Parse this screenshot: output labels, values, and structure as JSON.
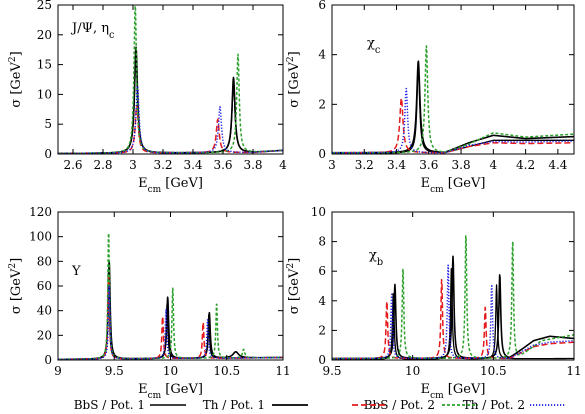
{
  "chart_data": [
    {
      "type": "line",
      "annotation": "J/Ψ,  ηc",
      "xlabel": "Ecm [GeV]",
      "ylabel": "σ [GeV2]",
      "xlim": [
        2.5,
        4.0
      ],
      "ylim": [
        0,
        25
      ],
      "xticks": [
        2.6,
        2.8,
        3.0,
        3.2,
        3.4,
        3.6,
        3.8,
        4.0
      ],
      "xtick_labels": [
        "2.6",
        "2.8",
        "3",
        "3.2",
        "3.4",
        "3.6",
        "3.8",
        "4"
      ],
      "yticks": [
        0,
        5,
        10,
        15,
        20,
        25
      ],
      "grid": false,
      "baseline": [
        [
          2.5,
          0.08
        ],
        [
          3.8,
          0.25
        ],
        [
          4.0,
          0.6
        ]
      ],
      "series": [
        {
          "style": "bbs1",
          "peaks": [
            {
              "x": 3.02,
              "h": 17.0,
              "w": 0.012
            },
            {
              "x": 3.67,
              "h": 11.8,
              "w": 0.012
            }
          ]
        },
        {
          "style": "th1",
          "peaks": [
            {
              "x": 3.02,
              "h": 17.8,
              "w": 0.012
            },
            {
              "x": 3.67,
              "h": 12.6,
              "w": 0.012
            }
          ]
        },
        {
          "style": "bbs2",
          "peaks": [
            {
              "x": 3.025,
              "h": 8.0,
              "w": 0.012
            },
            {
              "x": 3.565,
              "h": 5.6,
              "w": 0.012
            }
          ]
        },
        {
          "style": "th2",
          "peaks": [
            {
              "x": 3.015,
              "h": 24.8,
              "w": 0.01
            },
            {
              "x": 3.7,
              "h": 16.5,
              "w": 0.01
            }
          ]
        },
        {
          "style": "dot",
          "peaks": [
            {
              "x": 3.03,
              "h": 11.3,
              "w": 0.012
            },
            {
              "x": 3.58,
              "h": 7.7,
              "w": 0.012
            }
          ]
        }
      ]
    },
    {
      "type": "line",
      "annotation": "χc",
      "xlabel": "Ecm [GeV]",
      "ylabel": "σ [GeV2]",
      "xlim": [
        3.0,
        4.5
      ],
      "ylim": [
        0,
        6
      ],
      "xticks": [
        3.0,
        3.2,
        3.4,
        3.6,
        3.8,
        4.0,
        4.2,
        4.4
      ],
      "xtick_labels": [
        "3",
        "3.2",
        "3.4",
        "3.6",
        "3.8",
        "4",
        "4.2",
        "4.4"
      ],
      "yticks": [
        0,
        2,
        4,
        6
      ],
      "grid": false,
      "baseline": [
        [
          3.0,
          0.02
        ],
        [
          3.7,
          0.05
        ],
        [
          3.85,
          0.3
        ],
        [
          4.0,
          0.55
        ],
        [
          4.5,
          0.55
        ]
      ],
      "series": [
        {
          "style": "bbs1",
          "peaks": [
            {
              "x": 3.535,
              "h": 3.5,
              "w": 0.01
            }
          ]
        },
        {
          "style": "th1",
          "peaks": [
            {
              "x": 3.535,
              "h": 3.7,
              "w": 0.012
            }
          ],
          "bump": [
            [
              3.7,
              0.05
            ],
            [
              3.85,
              0.45
            ],
            [
              4.0,
              0.75
            ],
            [
              4.2,
              0.62
            ],
            [
              4.5,
              0.7
            ]
          ]
        },
        {
          "style": "bbs2",
          "peaks": [
            {
              "x": 3.43,
              "h": 2.2,
              "w": 0.012
            }
          ],
          "bump": [
            [
              3.7,
              0.05
            ],
            [
              3.85,
              0.3
            ],
            [
              4.0,
              0.45
            ],
            [
              4.2,
              0.42
            ],
            [
              4.5,
              0.45
            ]
          ]
        },
        {
          "style": "th2",
          "peaks": [
            {
              "x": 3.585,
              "h": 4.3,
              "w": 0.01
            }
          ],
          "bump": [
            [
              3.7,
              0.05
            ],
            [
              3.85,
              0.4
            ],
            [
              4.0,
              0.85
            ],
            [
              4.2,
              0.68
            ],
            [
              4.5,
              0.8
            ]
          ]
        },
        {
          "style": "dot",
          "peaks": [
            {
              "x": 3.46,
              "h": 2.6,
              "w": 0.01
            }
          ],
          "bump": [
            [
              3.7,
              0.05
            ],
            [
              3.85,
              0.35
            ],
            [
              4.0,
              0.5
            ],
            [
              4.2,
              0.48
            ],
            [
              4.5,
              0.52
            ]
          ]
        }
      ]
    },
    {
      "type": "line",
      "annotation": "Υ",
      "xlabel": "Ecm [GeV]",
      "ylabel": "σ [GeV2]",
      "xlim": [
        9.0,
        11.0
      ],
      "ylim": [
        0,
        120
      ],
      "xticks": [
        9.0,
        9.5,
        10.0,
        10.5,
        11.0
      ],
      "xtick_labels": [
        "9",
        "9.5",
        "10",
        "10.5",
        "11"
      ],
      "yticks": [
        0,
        20,
        40,
        60,
        80,
        100,
        120
      ],
      "grid": false,
      "baseline": [
        [
          9.0,
          0.5
        ],
        [
          10.5,
          1.5
        ],
        [
          11.0,
          2.0
        ]
      ],
      "series": [
        {
          "style": "bbs1",
          "peaks": [
            {
              "x": 9.45,
              "h": 75,
              "w": 0.008
            },
            {
              "x": 9.97,
              "h": 45,
              "w": 0.008
            },
            {
              "x": 10.34,
              "h": 35,
              "w": 0.008
            }
          ]
        },
        {
          "style": "th1",
          "peaks": [
            {
              "x": 9.455,
              "h": 80,
              "w": 0.01
            },
            {
              "x": 9.975,
              "h": 50,
              "w": 0.01
            },
            {
              "x": 10.345,
              "h": 37,
              "w": 0.01
            },
            {
              "x": 10.58,
              "h": 5,
              "w": 0.03
            }
          ]
        },
        {
          "style": "bbs2",
          "peaks": [
            {
              "x": 9.45,
              "h": 70,
              "w": 0.008
            },
            {
              "x": 9.93,
              "h": 35,
              "w": 0.008
            },
            {
              "x": 10.29,
              "h": 30,
              "w": 0.008
            }
          ]
        },
        {
          "style": "th2",
          "peaks": [
            {
              "x": 9.45,
              "h": 105,
              "w": 0.008
            },
            {
              "x": 10.02,
              "h": 57,
              "w": 0.008
            },
            {
              "x": 10.41,
              "h": 45,
              "w": 0.008
            },
            {
              "x": 10.65,
              "h": 7,
              "w": 0.012
            }
          ]
        },
        {
          "style": "dot",
          "peaks": [
            {
              "x": 9.455,
              "h": 60,
              "w": 0.008
            },
            {
              "x": 9.96,
              "h": 40,
              "w": 0.008
            },
            {
              "x": 10.33,
              "h": 32,
              "w": 0.008
            }
          ]
        }
      ]
    },
    {
      "type": "line",
      "annotation": "χb",
      "xlabel": "Ecm [GeV]",
      "ylabel": "σ [GeV2]",
      "xlim": [
        9.5,
        11.0
      ],
      "ylim": [
        0,
        10
      ],
      "xticks": [
        9.5,
        10.0,
        10.5,
        11.0
      ],
      "xtick_labels": [
        "9.5",
        "10",
        "10.5",
        "11"
      ],
      "yticks": [
        0,
        2,
        4,
        6,
        8,
        10
      ],
      "grid": false,
      "baseline": [
        [
          9.5,
          0.02
        ],
        [
          11.0,
          0.1
        ]
      ],
      "series": [
        {
          "style": "bbs1",
          "peaks": [
            {
              "x": 9.88,
              "h": 4.5,
              "w": 0.006
            },
            {
              "x": 10.24,
              "h": 6.2,
              "w": 0.006
            },
            {
              "x": 10.52,
              "h": 5.0,
              "w": 0.006
            }
          ]
        },
        {
          "style": "th1",
          "peaks": [
            {
              "x": 9.89,
              "h": 5.0,
              "w": 0.007
            },
            {
              "x": 10.25,
              "h": 6.9,
              "w": 0.007
            },
            {
              "x": 10.54,
              "h": 5.7,
              "w": 0.007
            }
          ],
          "bump": [
            [
              10.6,
              0.1
            ],
            [
              10.75,
              1.3
            ],
            [
              10.85,
              1.6
            ],
            [
              11.0,
              1.45
            ]
          ]
        },
        {
          "style": "bbs2",
          "peaks": [
            {
              "x": 9.84,
              "h": 3.9,
              "w": 0.006
            },
            {
              "x": 10.18,
              "h": 5.4,
              "w": 0.006
            },
            {
              "x": 10.45,
              "h": 3.5,
              "w": 0.006
            }
          ],
          "bump": [
            [
              10.6,
              0.1
            ],
            [
              10.75,
              0.9
            ],
            [
              10.85,
              1.1
            ],
            [
              11.0,
              1.2
            ]
          ]
        },
        {
          "style": "th2",
          "peaks": [
            {
              "x": 9.94,
              "h": 6.1,
              "w": 0.006
            },
            {
              "x": 10.33,
              "h": 8.4,
              "w": 0.006
            },
            {
              "x": 10.62,
              "h": 8.0,
              "w": 0.006
            }
          ],
          "bump": [
            [
              10.65,
              0.1
            ],
            [
              10.8,
              1.3
            ],
            [
              10.9,
              1.5
            ],
            [
              11.0,
              1.7
            ]
          ]
        },
        {
          "style": "dot",
          "peaks": [
            {
              "x": 9.87,
              "h": 4.4,
              "w": 0.006
            },
            {
              "x": 10.22,
              "h": 6.3,
              "w": 0.006
            },
            {
              "x": 10.49,
              "h": 5.0,
              "w": 0.006
            }
          ],
          "bump": [
            [
              10.6,
              0.1
            ],
            [
              10.75,
              1.0
            ],
            [
              10.85,
              1.2
            ],
            [
              11.0,
              1.3
            ]
          ]
        }
      ]
    }
  ],
  "legend": {
    "placement": "bottom",
    "entries": [
      {
        "label": "BbS / Pot. 1",
        "style": "bbs1"
      },
      {
        "label": "Th / Pot. 1",
        "style": "th1"
      },
      {
        "label": "BbS / Pot. 2",
        "style": "bbs2"
      },
      {
        "label": "Th / Pot. 2",
        "style": "th2"
      },
      {
        "label": "",
        "style": "dot"
      }
    ]
  },
  "styles": {
    "bbs1": {
      "color": "#000000",
      "dash": "",
      "width": 1.3
    },
    "th1": {
      "color": "#000000",
      "dash": "",
      "width": 1.6
    },
    "bbs2": {
      "color": "#e41a1c",
      "dash": "6,3",
      "width": 1.5
    },
    "th2": {
      "color": "#2ca02c",
      "dash": "3,2",
      "width": 1.5
    },
    "dot": {
      "color": "#1a1ae6",
      "dash": "1.2,1.8",
      "width": 1.5
    }
  }
}
